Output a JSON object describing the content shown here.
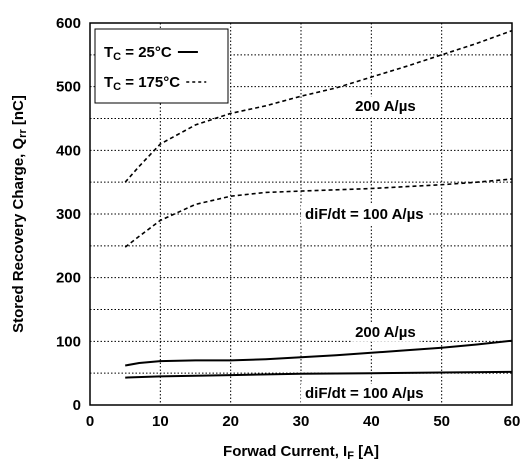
{
  "chart_data": {
    "type": "line",
    "xlabel": "Forwad Current, I",
    "xlabel_sub": "F",
    "xlabel_unit": " [A]",
    "ylabel": "Stored Recovery Charge, Q",
    "ylabel_sub": "rr",
    "ylabel_unit": " [nC]",
    "xlim": [
      0,
      60
    ],
    "ylim": [
      0,
      600
    ],
    "xticks": [
      "0",
      "10",
      "20",
      "30",
      "40",
      "50",
      "60"
    ],
    "yticks": [
      "0",
      "100",
      "200",
      "300",
      "400",
      "500",
      "600"
    ],
    "grid": "dotted",
    "legend": {
      "position": "top-left",
      "entries": [
        {
          "text": "T",
          "sub": "C",
          "rest": " = 25°C",
          "style": "solid"
        },
        {
          "text": "T",
          "sub": "C",
          "rest": " = 175°C",
          "style": "dashed"
        }
      ]
    },
    "series": [
      {
        "style": "dashed",
        "x": [
          5,
          7,
          10,
          15,
          20,
          25,
          30,
          35,
          40,
          45,
          50,
          55,
          60
        ],
        "values": [
          350,
          375,
          410,
          440,
          458,
          470,
          485,
          498,
          515,
          532,
          550,
          568,
          588
        ]
      },
      {
        "style": "dashed",
        "x": [
          5,
          7,
          10,
          15,
          20,
          25,
          30,
          35,
          40,
          45,
          50,
          55,
          60
        ],
        "values": [
          248,
          265,
          290,
          315,
          328,
          334,
          336,
          338,
          340,
          343,
          346,
          350,
          355
        ]
      },
      {
        "style": "solid",
        "x": [
          5,
          7,
          10,
          15,
          20,
          25,
          30,
          35,
          40,
          45,
          50,
          55,
          60
        ],
        "values": [
          62,
          66,
          69,
          70,
          70,
          72,
          75,
          78,
          82,
          86,
          90,
          95,
          101
        ]
      },
      {
        "style": "solid",
        "x": [
          5,
          10,
          20,
          30,
          40,
          50,
          60
        ],
        "values": [
          43,
          45,
          47,
          49,
          50,
          51,
          52
        ]
      }
    ],
    "annotations": [
      {
        "text": "200 A/µs",
        "x": 42,
        "y": 470,
        "anchor": "middle"
      },
      {
        "text": "diF/dt = 100 A/µs",
        "x": 39,
        "y": 300,
        "anchor": "middle"
      },
      {
        "text": "200 A/µs",
        "x": 42,
        "y": 115,
        "anchor": "middle"
      },
      {
        "text": "diF/dt = 100 A/µs",
        "x": 39,
        "y": 19,
        "anchor": "middle"
      }
    ]
  }
}
